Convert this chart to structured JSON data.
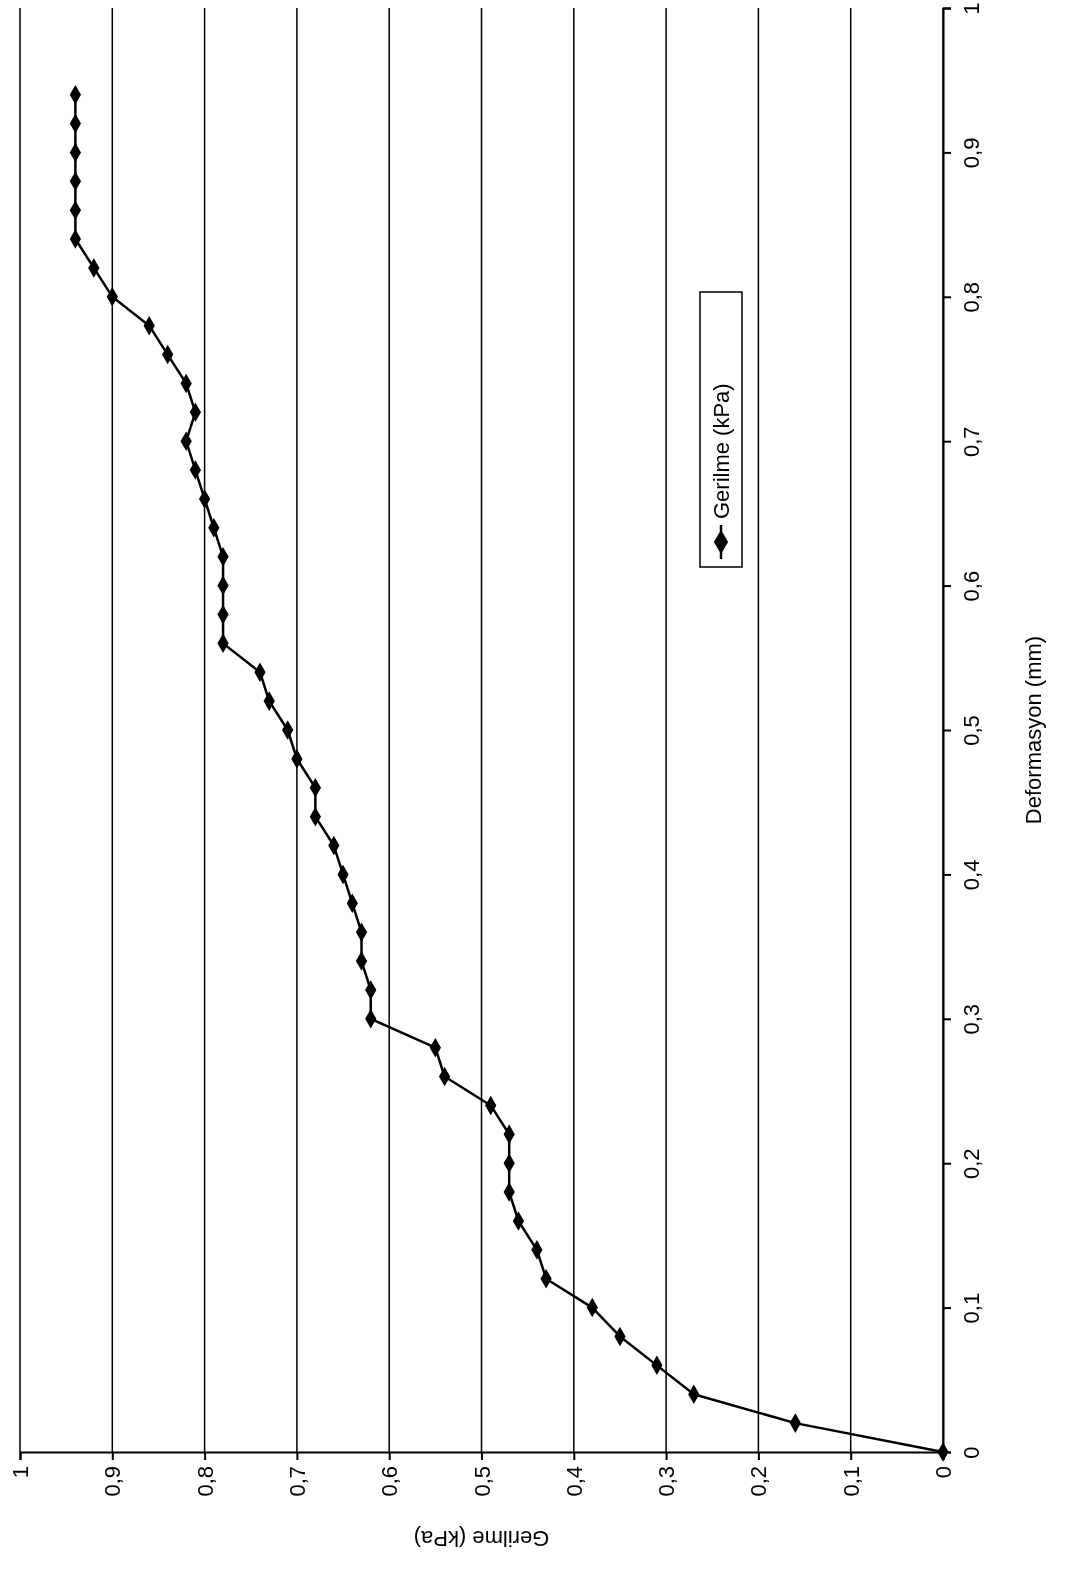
{
  "chart_data": {
    "type": "line",
    "xlabel": "Gerilme (kPa)",
    "ylabel": "Deformasyon (mm)",
    "series": [
      {
        "name": "Gerilme (kPa)",
        "color": "#000000",
        "x": [
          0,
          0.16,
          0.27,
          0.31,
          0.35,
          0.38,
          0.43,
          0.44,
          0.46,
          0.47,
          0.47,
          0.47,
          0.49,
          0.54,
          0.55,
          0.62,
          0.62,
          0.63,
          0.63,
          0.64,
          0.65,
          0.66,
          0.68,
          0.68,
          0.7,
          0.71,
          0.73,
          0.74,
          0.78,
          0.78,
          0.78,
          0.78,
          0.79,
          0.8,
          0.81,
          0.82,
          0.81,
          0.82,
          0.84,
          0.86,
          0.9,
          0.92,
          0.94,
          0.94,
          0.94,
          0.94,
          0.94,
          0.94
        ],
        "values": [
          0,
          0.02,
          0.04,
          0.06,
          0.08,
          0.1,
          0.12,
          0.14,
          0.16,
          0.18,
          0.2,
          0.22,
          0.24,
          0.26,
          0.28,
          0.3,
          0.32,
          0.34,
          0.36,
          0.38,
          0.4,
          0.42,
          0.44,
          0.46,
          0.48,
          0.5,
          0.52,
          0.54,
          0.56,
          0.58,
          0.6,
          0.62,
          0.64,
          0.66,
          0.68,
          0.7,
          0.72,
          0.74,
          0.76,
          0.78,
          0.8,
          0.82,
          0.84,
          0.86,
          0.88,
          0.9,
          0.92,
          0.94
        ]
      }
    ],
    "xlim": [
      1,
      0
    ],
    "ylim": [
      0,
      1
    ],
    "xticks": [
      1,
      {
        "value": 0.9,
        "label": "0,9"
      },
      {
        "value": 0.8,
        "label": "0,8"
      },
      {
        "value": 0.7,
        "label": "0,7"
      },
      {
        "value": 0.6,
        "label": "0,6"
      },
      {
        "value": 0.5,
        "label": "0,5"
      },
      {
        "value": 0.4,
        "label": "0,4"
      },
      {
        "value": 0.3,
        "label": "0,3"
      },
      {
        "value": 0.2,
        "label": "0,2"
      },
      {
        "value": 0.1,
        "label": "0,1"
      },
      0
    ],
    "yticks": [
      0,
      {
        "value": 0.1,
        "label": "0,1"
      },
      {
        "value": 0.2,
        "label": "0,2"
      },
      {
        "value": 0.3,
        "label": "0,3"
      },
      {
        "value": 0.4,
        "label": "0,4"
      },
      {
        "value": 0.5,
        "label": "0,5"
      },
      {
        "value": 0.6,
        "label": "0,6"
      },
      {
        "value": 0.7,
        "label": "0,7"
      },
      {
        "value": 0.8,
        "label": "0,8"
      },
      {
        "value": 0.9,
        "label": "0,9"
      },
      1
    ],
    "grid": "x",
    "legend": "top right",
    "marker": "diamond",
    "line_style": "solid"
  }
}
